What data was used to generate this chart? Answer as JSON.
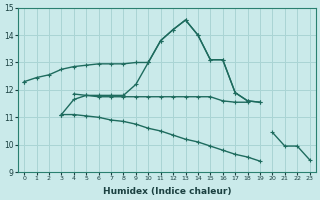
{
  "xlabel": "Humidex (Indice chaleur)",
  "bg_color": "#caeaea",
  "grid_color": "#aad4d4",
  "line_color": "#1e6b5e",
  "x": [
    0,
    1,
    2,
    3,
    4,
    5,
    6,
    7,
    8,
    9,
    10,
    11,
    12,
    13,
    14,
    15,
    16,
    17,
    18,
    19,
    20,
    21,
    22,
    23
  ],
  "series1": [
    null,
    null,
    null,
    null,
    null,
    null,
    null,
    null,
    null,
    null,
    13.0,
    13.8,
    14.2,
    14.55,
    14.0,
    13.1,
    13.1,
    11.9,
    11.6,
    11.55,
    null,
    null,
    null,
    null
  ],
  "series2": [
    12.3,
    12.45,
    12.55,
    12.75,
    12.85,
    12.9,
    12.95,
    12.95,
    12.95,
    13.0,
    13.0,
    null,
    null,
    null,
    null,
    null,
    null,
    null,
    null,
    null,
    null,
    null,
    null,
    null
  ],
  "series3": [
    null,
    null,
    null,
    null,
    11.85,
    11.8,
    11.8,
    11.8,
    11.8,
    12.2,
    13.0,
    13.8,
    14.2,
    14.55,
    14.0,
    13.1,
    13.1,
    11.9,
    11.6,
    11.55,
    null,
    null,
    null,
    null
  ],
  "series4": [
    null,
    null,
    null,
    11.1,
    11.65,
    11.8,
    11.75,
    11.75,
    11.75,
    11.75,
    11.75,
    11.75,
    11.75,
    11.75,
    11.75,
    11.75,
    11.6,
    11.55,
    11.55,
    null,
    null,
    null,
    null,
    null
  ],
  "series5": [
    12.3,
    null,
    null,
    11.1,
    null,
    null,
    null,
    null,
    null,
    null,
    null,
    null,
    null,
    null,
    null,
    null,
    null,
    null,
    null,
    null,
    10.45,
    9.95,
    9.95,
    9.45
  ],
  "series6": [
    null,
    null,
    null,
    11.1,
    11.1,
    11.05,
    11.0,
    10.9,
    10.85,
    10.75,
    10.6,
    10.5,
    10.35,
    10.2,
    10.1,
    9.95,
    9.8,
    9.65,
    9.55,
    9.4,
    null,
    null,
    null,
    null
  ],
  "ylim": [
    9,
    15
  ],
  "xlim": [
    -0.5,
    23.5
  ],
  "yticks": [
    9,
    10,
    11,
    12,
    13,
    14,
    15
  ]
}
